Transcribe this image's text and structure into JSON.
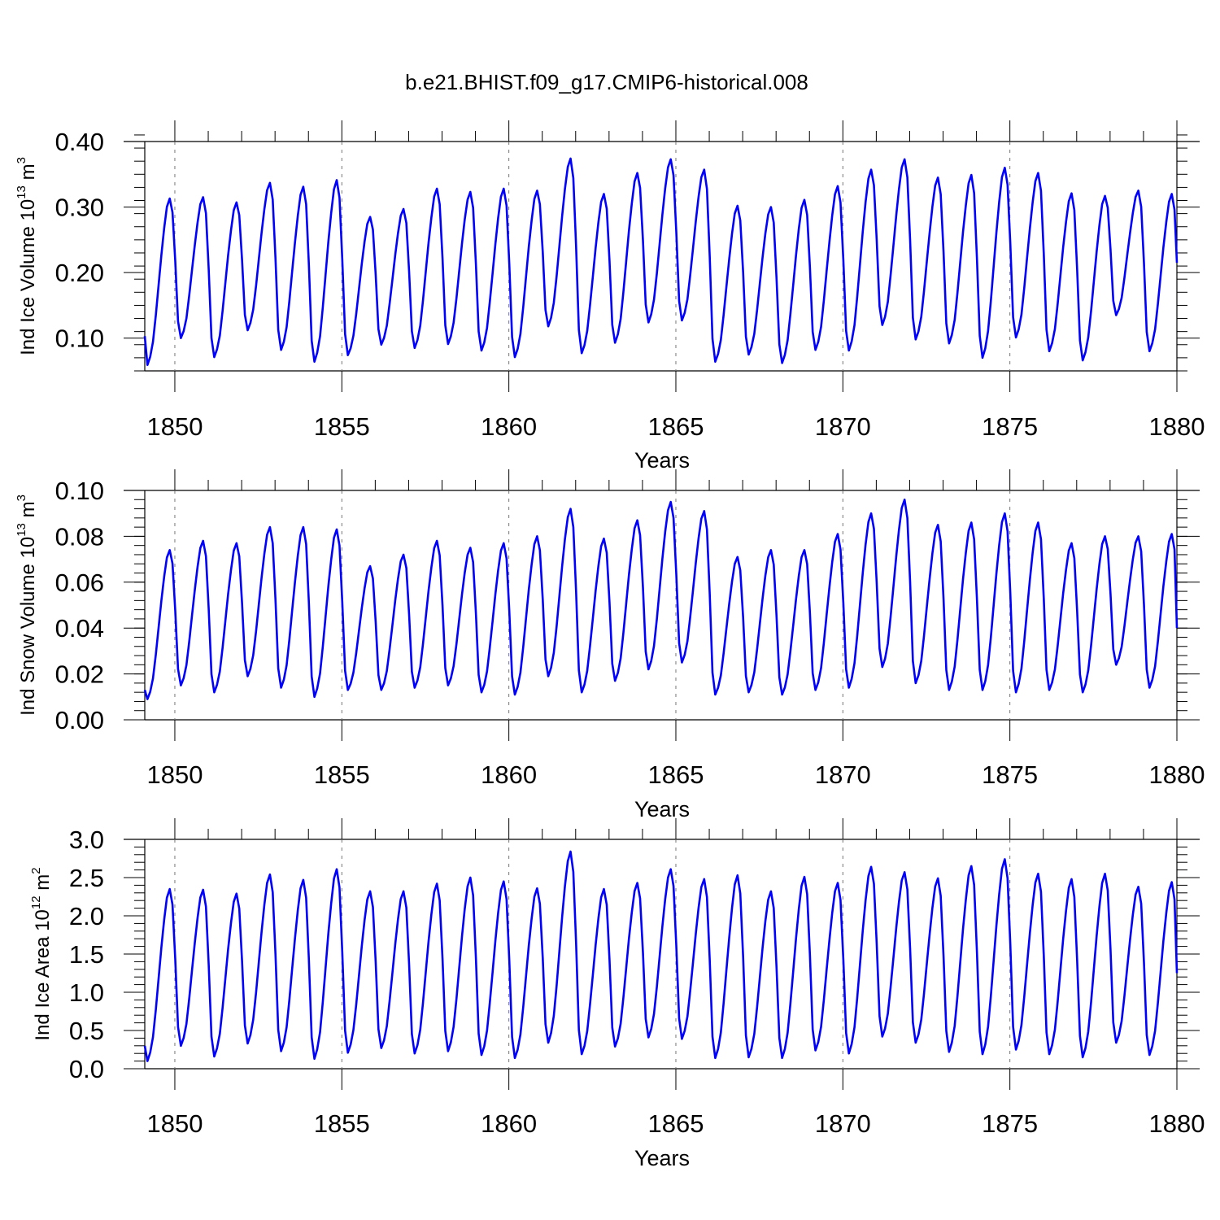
{
  "figure": {
    "title": "b.e21.BHIST.f09_g17.CMIP6-historical.008"
  },
  "chart_data": [
    {
      "type": "line",
      "name": "ind-ice-volume",
      "ylabel": {
        "text": "Ind Ice Volume 10",
        "exp": "13",
        "unit": " m",
        "unit_exp": "3"
      },
      "xlabel": "Years",
      "xlim": [
        1849.1,
        1880.0
      ],
      "ylim": [
        0.05,
        0.4
      ],
      "yticks": [
        0.1,
        0.2,
        0.3,
        0.4
      ],
      "ytick_labels": [
        "0.10",
        "0.20",
        "0.30",
        "0.40"
      ],
      "xticks": [
        1850,
        1855,
        1860,
        1865,
        1870,
        1875,
        1880
      ],
      "xtick_labels": [
        "1850",
        "1855",
        "1860",
        "1865",
        "1870",
        "1875",
        "1880"
      ],
      "vlines": [
        1850,
        1855,
        1860,
        1865,
        1870,
        1875
      ],
      "line_color": "#0000ff",
      "series": [
        {
          "name": "Ind Ice Volume",
          "start": 0.103,
          "minima": [
            0.059,
            0.1,
            0.071,
            0.112,
            0.082,
            0.064,
            0.074,
            0.09,
            0.085,
            0.091,
            0.081,
            0.071,
            0.118,
            0.077,
            0.093,
            0.124,
            0.127,
            0.064,
            0.075,
            0.062,
            0.082,
            0.081,
            0.12,
            0.098,
            0.092,
            0.07,
            0.101,
            0.08,
            0.066,
            0.135,
            0.08
          ],
          "maxima": [
            0.313,
            0.315,
            0.307,
            0.337,
            0.331,
            0.341,
            0.285,
            0.297,
            0.328,
            0.323,
            0.328,
            0.325,
            0.374,
            0.32,
            0.352,
            0.373,
            0.357,
            0.302,
            0.3,
            0.311,
            0.332,
            0.357,
            0.373,
            0.345,
            0.349,
            0.36,
            0.352,
            0.321,
            0.317,
            0.325,
            0.32
          ],
          "end": 0.215
        }
      ]
    },
    {
      "type": "line",
      "name": "ind-snow-volume",
      "ylabel": {
        "text": "Ind Snow Volume 10",
        "exp": "13",
        "unit": " m",
        "unit_exp": "3"
      },
      "xlabel": "Years",
      "xlim": [
        1849.1,
        1880.0
      ],
      "ylim": [
        0.0,
        0.1
      ],
      "yticks": [
        0.0,
        0.02,
        0.04,
        0.06,
        0.08,
        0.1
      ],
      "ytick_labels": [
        "0.00",
        "0.02",
        "0.04",
        "0.06",
        "0.08",
        "0.10"
      ],
      "xticks": [
        1850,
        1855,
        1860,
        1865,
        1870,
        1875,
        1880
      ],
      "xtick_labels": [
        "1850",
        "1855",
        "1860",
        "1865",
        "1870",
        "1875",
        "1880"
      ],
      "vlines": [
        1850,
        1855,
        1860,
        1865,
        1870,
        1875
      ],
      "line_color": "#0000ff",
      "series": [
        {
          "name": "Ind Snow Volume",
          "start": 0.013,
          "minima": [
            0.009,
            0.015,
            0.012,
            0.019,
            0.014,
            0.01,
            0.013,
            0.013,
            0.014,
            0.015,
            0.012,
            0.011,
            0.019,
            0.012,
            0.017,
            0.022,
            0.025,
            0.011,
            0.012,
            0.011,
            0.013,
            0.014,
            0.023,
            0.016,
            0.013,
            0.013,
            0.012,
            0.013,
            0.012,
            0.024,
            0.014
          ],
          "maxima": [
            0.074,
            0.078,
            0.077,
            0.084,
            0.084,
            0.083,
            0.067,
            0.072,
            0.078,
            0.075,
            0.077,
            0.08,
            0.092,
            0.079,
            0.087,
            0.095,
            0.091,
            0.071,
            0.074,
            0.074,
            0.081,
            0.09,
            0.096,
            0.085,
            0.086,
            0.09,
            0.086,
            0.077,
            0.08,
            0.08,
            0.081
          ],
          "end": 0.04
        }
      ]
    },
    {
      "type": "line",
      "name": "ind-ice-area",
      "ylabel": {
        "text": "Ind Ice Area 10",
        "exp": "12",
        "unit": " m",
        "unit_exp": "2"
      },
      "xlabel": "Years",
      "xlim": [
        1849.1,
        1880.0
      ],
      "ylim": [
        0.0,
        3.0
      ],
      "yticks": [
        0.0,
        0.5,
        1.0,
        1.5,
        2.0,
        2.5,
        3.0
      ],
      "ytick_labels": [
        "0.0",
        "0.5",
        "1.0",
        "1.5",
        "2.0",
        "2.5",
        "3.0"
      ],
      "xticks": [
        1850,
        1855,
        1860,
        1865,
        1870,
        1875,
        1880
      ],
      "xtick_labels": [
        "1850",
        "1855",
        "1860",
        "1865",
        "1870",
        "1875",
        "1880"
      ],
      "vlines": [
        1850,
        1855,
        1860,
        1865,
        1870,
        1875
      ],
      "line_color": "#0000ff",
      "series": [
        {
          "name": "Ind Ice Area",
          "start": 0.3,
          "minima": [
            0.1,
            0.3,
            0.16,
            0.33,
            0.23,
            0.13,
            0.21,
            0.27,
            0.2,
            0.23,
            0.18,
            0.14,
            0.34,
            0.19,
            0.29,
            0.41,
            0.39,
            0.14,
            0.15,
            0.14,
            0.24,
            0.2,
            0.42,
            0.34,
            0.22,
            0.19,
            0.25,
            0.19,
            0.15,
            0.34,
            0.18
          ],
          "maxima": [
            2.35,
            2.34,
            2.29,
            2.54,
            2.47,
            2.61,
            2.32,
            2.32,
            2.42,
            2.5,
            2.45,
            2.36,
            2.84,
            2.35,
            2.43,
            2.61,
            2.48,
            2.53,
            2.32,
            2.51,
            2.43,
            2.64,
            2.57,
            2.49,
            2.65,
            2.74,
            2.55,
            2.48,
            2.55,
            2.38,
            2.44
          ],
          "end": 1.25
        }
      ]
    }
  ]
}
